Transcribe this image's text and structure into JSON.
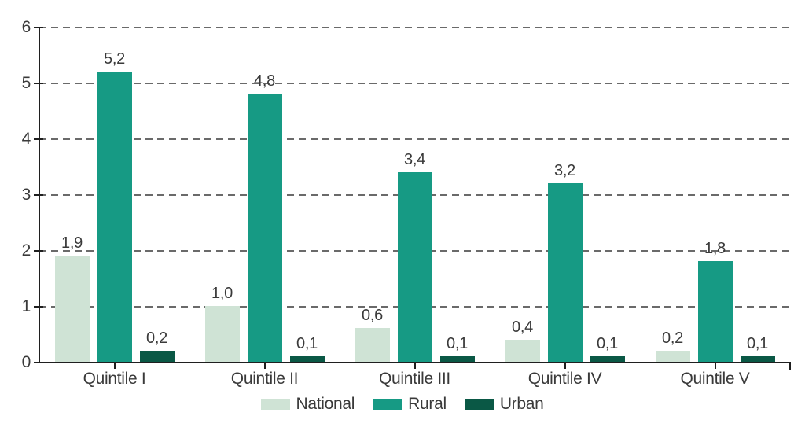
{
  "chart_data": {
    "type": "bar",
    "title": "",
    "xlabel": "",
    "ylabel": "",
    "categories": [
      "Quintile I",
      "Quintile II",
      "Quintile III",
      "Quintile IV",
      "Quintile V"
    ],
    "series": [
      {
        "name": "National",
        "color": "#cfe3d5",
        "values": [
          1.9,
          1.0,
          0.6,
          0.4,
          0.2
        ],
        "value_labels": [
          "1,9",
          "1,0",
          "0,6",
          "0,4",
          "0,2"
        ]
      },
      {
        "name": "Rural",
        "color": "#169a84",
        "values": [
          5.2,
          4.8,
          3.4,
          3.2,
          1.8
        ],
        "value_labels": [
          "5,2",
          "4,8",
          "3,4",
          "3,2",
          "1,8"
        ]
      },
      {
        "name": "Urban",
        "color": "#0a5845",
        "values": [
          0.2,
          0.1,
          0.1,
          0.1,
          0.1
        ],
        "value_labels": [
          "0,2",
          "0,1",
          "0,1",
          "0,1",
          "0,1"
        ]
      }
    ],
    "ylim": [
      0,
      6
    ],
    "yticks": [
      0,
      1,
      2,
      3,
      4,
      5,
      6
    ],
    "ytick_labels": [
      "0",
      "1",
      "2",
      "3",
      "4",
      "5",
      "6"
    ],
    "grid": "horizontal-dashed",
    "legend_position": "bottom",
    "decimal_separator": ","
  },
  "colors": {
    "background": "#ffffff",
    "axis": "#1f1f1f",
    "gridline": "#6a6a6a",
    "text": "#3a3a3a"
  }
}
